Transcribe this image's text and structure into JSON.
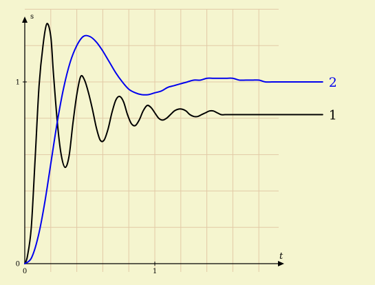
{
  "chart_data": {
    "type": "line",
    "title": "",
    "xlabel": "t",
    "ylabel": "s",
    "xlim": [
      0,
      2.6
    ],
    "ylim": [
      0,
      1.35
    ],
    "grid": true,
    "x_tick_values": [
      0,
      1
    ],
    "x_tick_labels": [
      "0",
      "1"
    ],
    "y_tick_values": [
      0,
      1
    ],
    "y_tick_labels": [
      "0",
      "1"
    ],
    "series": [
      {
        "name": "1",
        "color": "#000000",
        "x": [
          0,
          0.02,
          0.05,
          0.08,
          0.11,
          0.14,
          0.17,
          0.2,
          0.22,
          0.25,
          0.28,
          0.31,
          0.34,
          0.37,
          0.4,
          0.43,
          0.46,
          0.49,
          0.52,
          0.55,
          0.58,
          0.61,
          0.64,
          0.67,
          0.7,
          0.73,
          0.76,
          0.79,
          0.82,
          0.85,
          0.88,
          0.91,
          0.94,
          0.97,
          1.0,
          1.03,
          1.06,
          1.09,
          1.12,
          1.15,
          1.18,
          1.21,
          1.24,
          1.27,
          1.3,
          1.33,
          1.36,
          1.39,
          1.42,
          1.45,
          1.48,
          1.51,
          1.54,
          1.57,
          1.6,
          1.63,
          1.66,
          1.69,
          1.72,
          1.75,
          1.78,
          1.81,
          1.84,
          1.87,
          1.9,
          1.93,
          1.96,
          1.99,
          2.02,
          2.05,
          2.08,
          2.11,
          2.14,
          2.17,
          2.2,
          2.23,
          2.26,
          2.29
        ],
        "y": [
          0,
          0.04,
          0.2,
          0.58,
          0.98,
          1.2,
          1.32,
          1.25,
          1.05,
          0.78,
          0.6,
          0.53,
          0.59,
          0.77,
          0.93,
          1.03,
          1.01,
          0.94,
          0.85,
          0.75,
          0.68,
          0.68,
          0.74,
          0.83,
          0.9,
          0.92,
          0.89,
          0.82,
          0.77,
          0.76,
          0.79,
          0.84,
          0.87,
          0.86,
          0.83,
          0.8,
          0.79,
          0.8,
          0.82,
          0.84,
          0.85,
          0.85,
          0.84,
          0.82,
          0.81,
          0.81,
          0.82,
          0.83,
          0.84,
          0.84,
          0.83,
          0.82,
          0.82,
          0.82,
          0.82,
          0.82,
          0.82,
          0.82,
          0.82,
          0.82,
          0.82,
          0.82,
          0.82,
          0.82,
          0.82,
          0.82,
          0.82,
          0.82,
          0.82,
          0.82,
          0.82,
          0.82,
          0.82,
          0.82,
          0.82,
          0.82,
          0.82,
          0.82
        ]
      },
      {
        "name": "2",
        "color": "#0000ee",
        "x": [
          0,
          0.05,
          0.1,
          0.15,
          0.2,
          0.25,
          0.3,
          0.35,
          0.4,
          0.45,
          0.5,
          0.55,
          0.6,
          0.65,
          0.7,
          0.75,
          0.8,
          0.85,
          0.9,
          0.95,
          1.0,
          1.05,
          1.1,
          1.15,
          1.2,
          1.25,
          1.3,
          1.35,
          1.4,
          1.45,
          1.5,
          1.55,
          1.6,
          1.65,
          1.7,
          1.75,
          1.8,
          1.85,
          1.9,
          1.95,
          2.0,
          2.05,
          2.1,
          2.15,
          2.2,
          2.25,
          2.29
        ],
        "y": [
          0,
          0.03,
          0.14,
          0.32,
          0.55,
          0.78,
          0.97,
          1.11,
          1.2,
          1.25,
          1.25,
          1.22,
          1.17,
          1.11,
          1.05,
          1.0,
          0.96,
          0.94,
          0.93,
          0.93,
          0.94,
          0.95,
          0.97,
          0.98,
          0.99,
          1.0,
          1.01,
          1.01,
          1.02,
          1.02,
          1.02,
          1.02,
          1.02,
          1.01,
          1.01,
          1.01,
          1.01,
          1.0,
          1.0,
          1.0,
          1.0,
          1.0,
          1.0,
          1.0,
          1.0,
          1.0,
          1.0
        ]
      }
    ]
  }
}
